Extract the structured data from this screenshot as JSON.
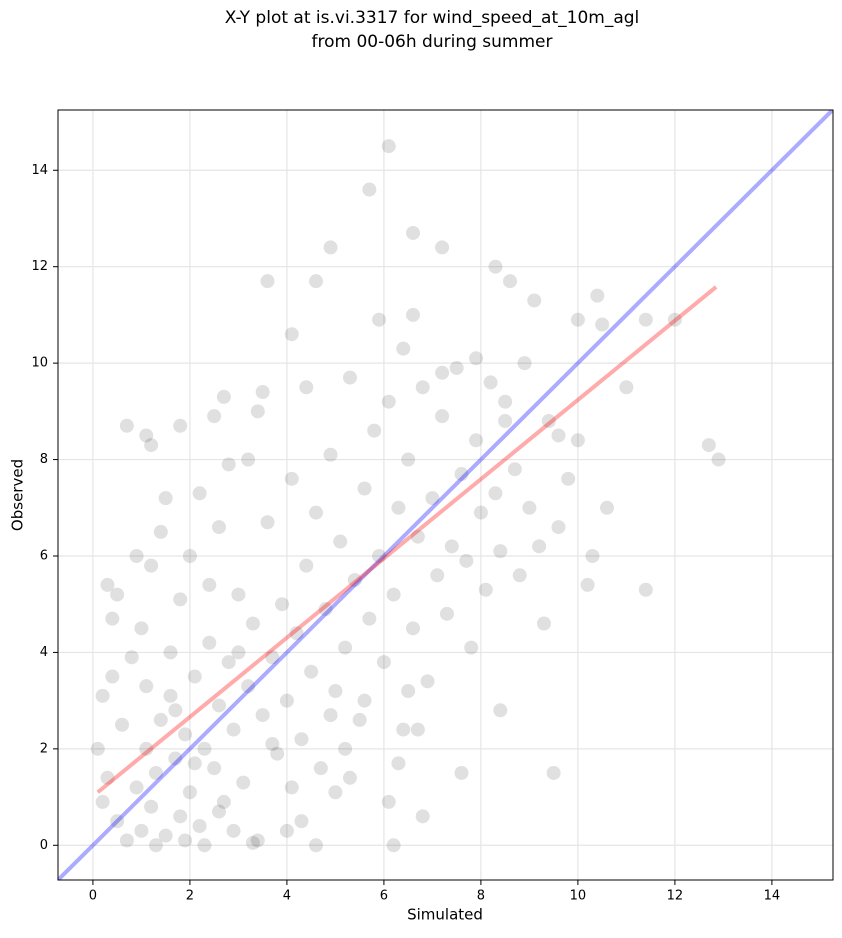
{
  "chart_data": {
    "type": "scatter",
    "title": [
      "X-Y plot at is.vi.3317 for wind_speed_at_10m_agl",
      "from 00-06h during summer"
    ],
    "x_label": "Simulated",
    "y_label": "Observed",
    "xlim": [
      -0.72,
      15.26
    ],
    "ylim": [
      -0.72,
      15.25
    ],
    "xticks": [
      0,
      2,
      4,
      6,
      8,
      10,
      12,
      14
    ],
    "yticks": [
      0,
      2,
      4,
      6,
      8,
      10,
      12,
      14
    ],
    "grid": true,
    "series": [
      {
        "color": "#000000",
        "alpha": 0.12,
        "x": [
          6.1,
          5.7,
          6.6,
          7.2,
          4.9,
          3.6,
          4.6,
          8.3,
          8.6,
          10.4,
          11.4,
          12.0,
          12.7,
          12.9,
          11.4,
          9.5,
          9.3,
          8.4,
          7.6,
          6.8,
          6.1,
          6.2,
          4.6,
          0.7,
          1.1,
          1.2,
          1.8,
          4.1,
          10.3,
          10.2,
          9.1,
          8.5,
          9.6,
          10.0,
          10.5,
          7.9,
          7.2,
          6.4,
          5.9,
          6.6,
          0.1,
          0.2,
          0.3,
          0.5,
          0.4,
          0.5,
          0.7,
          0.9,
          1.0,
          1.1,
          1.2,
          1.3,
          1.4,
          1.5,
          1.6,
          1.7,
          1.8,
          1.9,
          2.0,
          2.1,
          2.2,
          2.3,
          2.4,
          2.5,
          2.6,
          2.7,
          2.8,
          2.9,
          3.0,
          3.1,
          3.2,
          3.3,
          3.4,
          3.5,
          3.6,
          3.7,
          3.8,
          3.9,
          4.0,
          4.1,
          4.2,
          4.3,
          4.4,
          4.5,
          4.6,
          4.7,
          4.8,
          4.9,
          5.0,
          5.1,
          5.2,
          5.3,
          5.4,
          5.5,
          5.6,
          5.7,
          5.8,
          5.9,
          6.0,
          6.1,
          6.2,
          6.3,
          6.4,
          6.5,
          6.6,
          6.7,
          6.8,
          6.9,
          7.0,
          7.1,
          7.2,
          7.3,
          7.4,
          7.5,
          7.6,
          7.7,
          7.8,
          7.9,
          8.0,
          8.1,
          8.2,
          8.3,
          8.4,
          8.5,
          8.7,
          8.8,
          8.9,
          9.0,
          9.2,
          9.4,
          9.6,
          9.8,
          10.0,
          10.6,
          11.0,
          0.3,
          0.6,
          0.8,
          1.0,
          1.2,
          1.4,
          1.6,
          1.8,
          2.0,
          2.2,
          2.4,
          2.6,
          2.8,
          3.0,
          3.2,
          3.4,
          2.7,
          3.5,
          4.4,
          2.5,
          1.3,
          1.9,
          2.3,
          2.9,
          3.3,
          4.0,
          4.3,
          5.0,
          5.3,
          5.6,
          6.3,
          6.5,
          6.7,
          0.9,
          0.4,
          0.2,
          1.5,
          1.1,
          2.1,
          1.7,
          2.6,
          3.7,
          4.1,
          4.9,
          5.2
        ],
        "values": [
          14.5,
          13.6,
          12.7,
          12.4,
          12.4,
          11.7,
          11.7,
          12.0,
          11.7,
          11.4,
          10.9,
          10.9,
          8.3,
          8.0,
          5.3,
          1.5,
          4.6,
          2.8,
          1.5,
          0.6,
          0.9,
          0.0,
          0.0,
          8.7,
          8.5,
          8.3,
          8.7,
          10.6,
          6.0,
          5.4,
          11.3,
          9.2,
          8.5,
          10.9,
          10.8,
          10.1,
          9.8,
          10.3,
          10.9,
          11.0,
          2.0,
          3.1,
          5.4,
          5.2,
          4.7,
          0.5,
          0.1,
          1.2,
          0.3,
          2.0,
          0.8,
          1.5,
          2.6,
          0.2,
          3.1,
          1.8,
          0.6,
          2.3,
          1.1,
          3.5,
          0.4,
          2.0,
          4.2,
          1.6,
          2.9,
          0.9,
          3.8,
          2.4,
          5.2,
          1.3,
          3.3,
          4.6,
          0.1,
          2.7,
          6.7,
          3.9,
          1.9,
          5.0,
          3.0,
          7.6,
          4.4,
          2.2,
          5.8,
          3.6,
          6.9,
          1.6,
          4.9,
          8.1,
          3.2,
          6.3,
          4.1,
          9.7,
          5.5,
          2.6,
          7.4,
          4.7,
          8.6,
          6.0,
          3.8,
          9.2,
          5.2,
          7.0,
          2.4,
          8.0,
          4.5,
          6.4,
          9.5,
          3.4,
          7.2,
          5.6,
          8.9,
          4.8,
          6.2,
          9.9,
          7.7,
          5.9,
          4.1,
          8.4,
          6.9,
          5.3,
          9.6,
          7.3,
          6.1,
          8.8,
          7.8,
          5.6,
          10.0,
          7.0,
          6.2,
          8.8,
          6.6,
          7.6,
          8.4,
          7.0,
          9.5,
          1.4,
          2.5,
          3.9,
          4.5,
          5.8,
          6.5,
          4.0,
          5.1,
          6.0,
          7.3,
          5.4,
          6.6,
          7.9,
          4.0,
          8.0,
          9.0,
          9.3,
          9.4,
          9.5,
          8.9,
          0.0,
          0.1,
          0.0,
          0.3,
          0.05,
          0.3,
          0.5,
          1.1,
          1.4,
          3.0,
          1.7,
          3.2,
          2.4,
          6.0,
          3.5,
          0.9,
          7.2,
          3.3,
          1.7,
          2.8,
          0.7,
          2.1,
          1.2,
          2.7,
          2.0
        ]
      }
    ],
    "lines": [
      {
        "color": "#0000ff",
        "x": [
          -0.72,
          15.26
        ],
        "y": [
          -0.72,
          15.26
        ]
      },
      {
        "color": "#ff0000",
        "x": [
          0.1,
          12.85
        ],
        "y": [
          1.1,
          11.58
        ]
      }
    ]
  }
}
